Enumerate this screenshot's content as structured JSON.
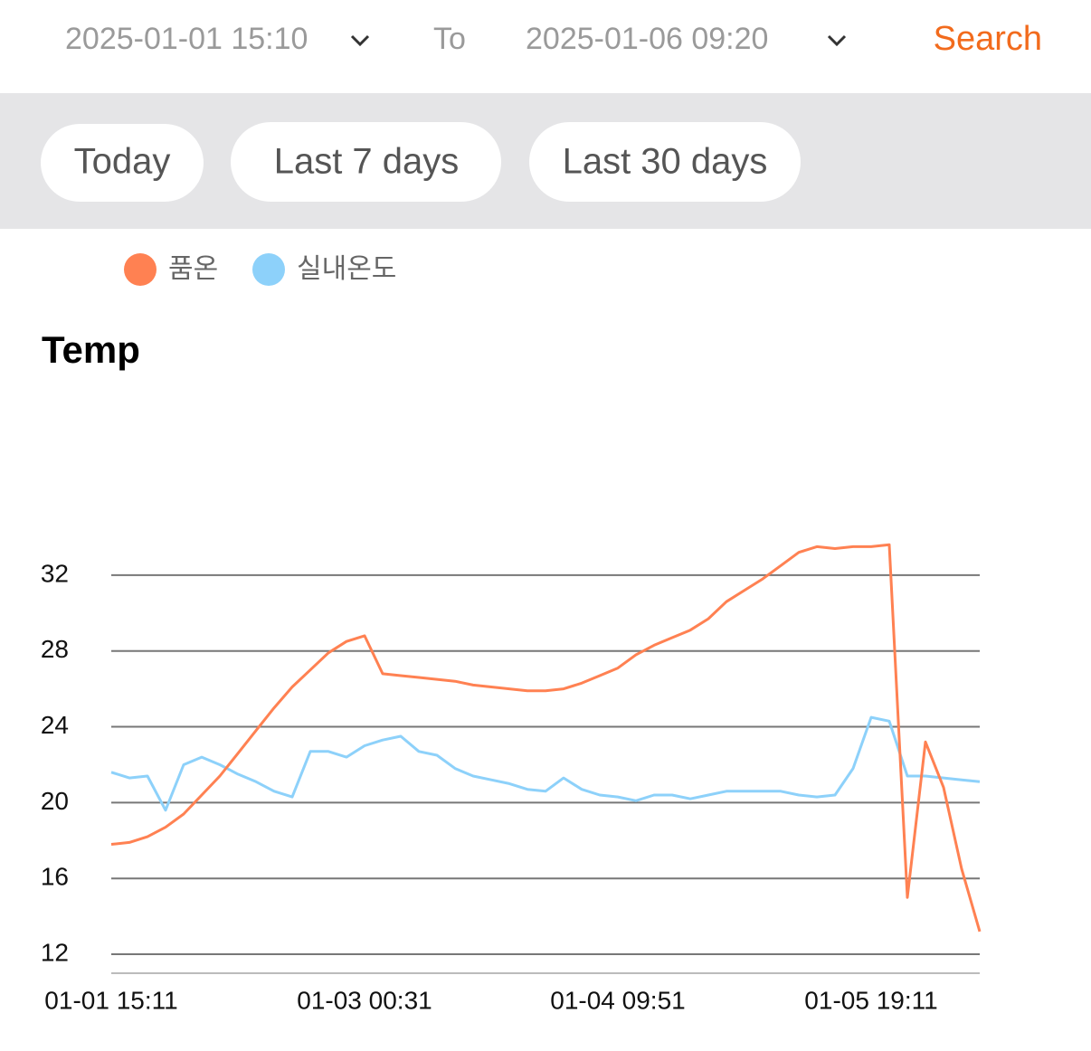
{
  "header": {
    "start": "2025-01-01 15:10",
    "separator": "To",
    "end": "2025-01-06 09:20",
    "action": "Search"
  },
  "chips": [
    "Today",
    "Last 7 days",
    "Last 30 days"
  ],
  "chart_data": {
    "type": "line",
    "title": "Temp",
    "categories": [
      "01-01 15:11",
      null,
      null,
      null,
      null,
      null,
      null,
      null,
      null,
      null,
      null,
      null,
      null,
      null,
      "01-03 00:31",
      null,
      null,
      null,
      null,
      null,
      null,
      null,
      null,
      null,
      null,
      null,
      null,
      null,
      "01-04 09:51",
      null,
      null,
      null,
      null,
      null,
      null,
      null,
      null,
      null,
      null,
      null,
      null,
      null,
      "01-05 19:11",
      null,
      null,
      null,
      null,
      null,
      null
    ],
    "series": [
      {
        "name": "품온",
        "color": "#ff8152",
        "values": [
          17.8,
          17.9,
          18.2,
          18.7,
          19.4,
          20.4,
          21.4,
          22.6,
          23.8,
          25.0,
          26.1,
          27.0,
          27.9,
          28.5,
          28.8,
          26.8,
          26.7,
          26.6,
          26.5,
          26.4,
          26.2,
          26.1,
          26.0,
          25.9,
          25.9,
          26.0,
          26.3,
          26.7,
          27.1,
          27.8,
          28.3,
          28.7,
          29.1,
          29.7,
          30.6,
          31.2,
          31.8,
          32.5,
          33.2,
          33.5,
          33.4,
          33.5,
          33.5,
          33.6,
          15.0,
          23.2,
          20.8,
          16.5,
          13.2
        ]
      },
      {
        "name": "실내온도",
        "color": "#8dd1fa",
        "values": [
          21.6,
          21.3,
          21.4,
          19.6,
          22.0,
          22.4,
          22.0,
          21.5,
          21.1,
          20.6,
          20.3,
          22.7,
          22.7,
          22.4,
          23.0,
          23.3,
          23.5,
          22.7,
          22.5,
          21.8,
          21.4,
          21.2,
          21.0,
          20.7,
          20.6,
          21.3,
          20.7,
          20.4,
          20.3,
          20.1,
          20.4,
          20.4,
          20.2,
          20.4,
          20.6,
          20.6,
          20.6,
          20.6,
          20.4,
          20.3,
          20.4,
          21.8,
          24.5,
          24.3,
          21.4,
          21.4,
          21.3,
          21.2,
          21.1
        ]
      }
    ],
    "ylim": [
      11,
      35
    ],
    "yticks": [
      12,
      16,
      20,
      24,
      28,
      32
    ],
    "grid": true
  }
}
